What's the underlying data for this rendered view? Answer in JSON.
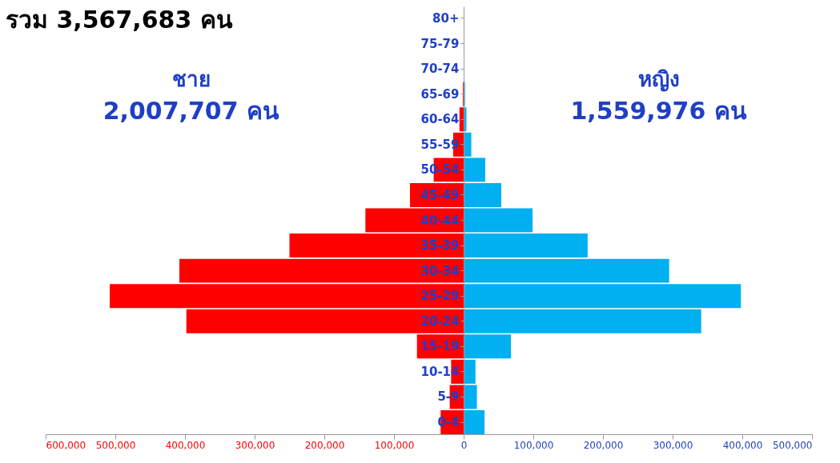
{
  "chart_data": {
    "type": "bar",
    "orientation": "horizontal",
    "stacked": true,
    "title": "รวม 3,567,683 คน",
    "categories": [
      "80+",
      "75-79",
      "70-74",
      "65-69",
      "60-64",
      "55-59",
      "50-54",
      "45-49",
      "40-44",
      "35-39",
      "30-34",
      "25-29",
      "20-24",
      "15-19",
      "10-14",
      "5-9",
      "0-4"
    ],
    "series": [
      {
        "color": "#ff0000",
        "values": [
          null,
          null,
          null,
          -1000,
          -6000,
          -15000,
          -43000,
          -77000,
          -141000,
          -250000,
          -408000,
          -508000,
          -398000,
          -67000,
          -18000,
          -20000,
          -33000
        ]
      },
      {
        "color": "#00b0f0",
        "values": [
          null,
          null,
          null,
          2000,
          4000,
          11000,
          31000,
          54000,
          99000,
          178000,
          295000,
          398000,
          341000,
          68000,
          17000,
          19000,
          30000
        ]
      }
    ],
    "annotations": [
      "ชาย",
      "2,007,707 คน",
      "หญิง",
      "1,559,976 คน"
    ],
    "xlim": [
      -600000,
      500000
    ],
    "xticks": [
      {
        "value": -600000,
        "label": "600,000"
      },
      {
        "value": -500000,
        "label": "500,000"
      },
      {
        "value": -400000,
        "label": "400,000"
      },
      {
        "value": -300000,
        "label": "300,000"
      },
      {
        "value": -200000,
        "label": "200,000"
      },
      {
        "value": -100000,
        "label": "100,000"
      },
      {
        "value": 0,
        "label": "0"
      },
      {
        "value": 100000,
        "label": "100,000"
      },
      {
        "value": 200000,
        "label": "200,000"
      },
      {
        "value": 300000,
        "label": "300,000"
      },
      {
        "value": 400000,
        "label": "400,000"
      },
      {
        "value": 500000,
        "label": "500,000"
      }
    ],
    "grid": false
  }
}
